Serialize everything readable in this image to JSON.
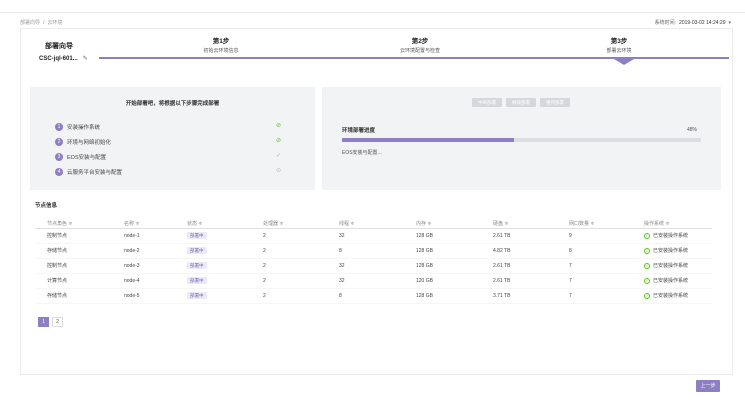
{
  "breadcrumb": [
    "部署向导",
    "云环境"
  ],
  "systime": {
    "label": "系统时间:",
    "value": "2019-03-02 14:24:29",
    "caret": "▾"
  },
  "wizard": {
    "title": "部署向导",
    "cluster": "CSC-jql-601...",
    "edit_icon": "pencil-icon"
  },
  "steps": [
    {
      "num": "第1步",
      "desc": "初始云环境信息"
    },
    {
      "num": "第2步",
      "desc": "云环境配置与检查"
    },
    {
      "num": "第3步",
      "desc": "部署云环境"
    }
  ],
  "tasks": {
    "title": "开始部署吧，将根据以下步骤完成部署",
    "items": [
      {
        "n": "1",
        "label": "安装操作系统",
        "status": "done"
      },
      {
        "n": "2",
        "label": "环境与网络初始化",
        "status": "done"
      },
      {
        "n": "3",
        "label": "EOS安装与配置",
        "status": "running"
      },
      {
        "n": "4",
        "label": "云服务平台安装与配置",
        "status": "pending"
      }
    ]
  },
  "controls": [
    "中断部署",
    "继续部署",
    "重新部署"
  ],
  "env": {
    "title": "环境部署进度",
    "percent": "48%",
    "progress": 48,
    "sub": "EOS安装与配置..."
  },
  "nodes": {
    "title": "节点信息",
    "headers": [
      "节点角色 ≑",
      "名称 ≑",
      "状态 ≑",
      "处理器 ≑",
      "线程 ≑",
      "内存 ≑",
      "硬盘 ≑",
      "网口数量 ≑",
      "操作系统 ≑"
    ],
    "rows": [
      {
        "role": "控制节点",
        "name": "node-1",
        "state": "部署中",
        "cpu": "2",
        "threads": "32",
        "mem": "128 GB",
        "disk": "2.61 TB",
        "nics": "9",
        "os": "已安装操作系统"
      },
      {
        "role": "存储节点",
        "name": "node-2",
        "state": "部署中",
        "cpu": "2",
        "threads": "8",
        "mem": "128 GB",
        "disk": "4.82 TB",
        "nics": "8",
        "os": "已安装操作系统"
      },
      {
        "role": "控制节点",
        "name": "node-3",
        "state": "部署中",
        "cpu": "2",
        "threads": "32",
        "mem": "128 GB",
        "disk": "2.61 TB",
        "nics": "7",
        "os": "已安装操作系统"
      },
      {
        "role": "计算节点",
        "name": "node-4",
        "state": "部署中",
        "cpu": "2",
        "threads": "32",
        "mem": "120 GB",
        "disk": "2.61 TB",
        "nics": "7",
        "os": "已安装操作系统"
      },
      {
        "role": "存储节点",
        "name": "node-5",
        "state": "部署中",
        "cpu": "2",
        "threads": "8",
        "mem": "128 GB",
        "disk": "3.71 TB",
        "nics": "7",
        "os": "已安装操作系统"
      }
    ]
  },
  "pager": [
    "1",
    "2"
  ],
  "prev_button": "上一步",
  "colors": {
    "accent": "#8e7fc4",
    "success": "#52c41a"
  }
}
